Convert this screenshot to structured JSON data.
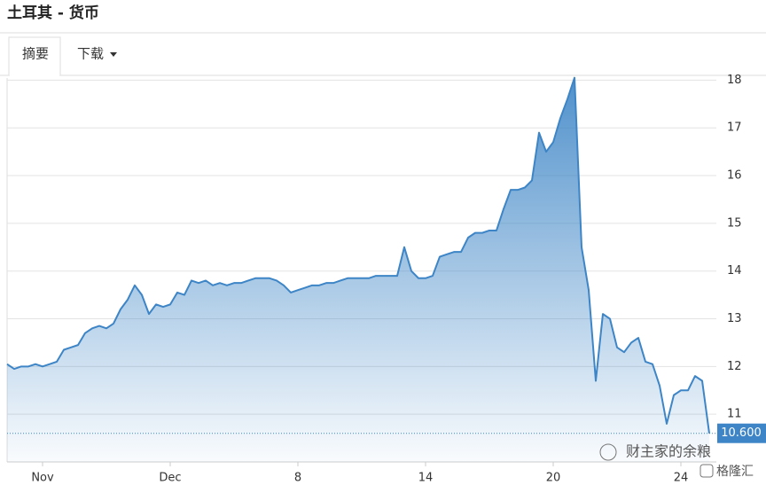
{
  "header": {
    "title": "土耳其 - 货币",
    "tabs": [
      "摘要",
      "下载"
    ]
  },
  "watermark": [
    "财主家的余粮",
    "格隆汇"
  ],
  "chart_data": {
    "type": "area",
    "categories": [
      null,
      null,
      null,
      null,
      null,
      "Nov",
      null,
      null,
      null,
      null,
      null,
      null,
      null,
      null,
      null,
      null,
      null,
      null,
      null,
      null,
      null,
      null,
      null,
      "Dec",
      null,
      null,
      null,
      null,
      null,
      null,
      null,
      null,
      null,
      null,
      null,
      null,
      null,
      null,
      null,
      null,
      null,
      "8",
      null,
      null,
      null,
      null,
      null,
      null,
      null,
      null,
      null,
      null,
      null,
      null,
      null,
      null,
      null,
      null,
      null,
      "14",
      null,
      null,
      null,
      null,
      null,
      null,
      null,
      null,
      null,
      null,
      null,
      null,
      null,
      null,
      null,
      null,
      null,
      "20",
      null,
      null,
      null,
      null,
      null,
      null,
      null,
      null,
      null,
      null,
      null,
      null,
      null,
      null,
      null,
      null,
      null,
      "24",
      null,
      null,
      null,
      null
    ],
    "values": [
      12.05,
      11.95,
      12.0,
      12.0,
      12.05,
      12.0,
      12.05,
      12.1,
      12.35,
      12.4,
      12.45,
      12.7,
      12.8,
      12.85,
      12.8,
      12.9,
      13.2,
      13.4,
      13.7,
      13.5,
      13.1,
      13.3,
      13.25,
      13.3,
      13.55,
      13.5,
      13.8,
      13.75,
      13.8,
      13.7,
      13.75,
      13.7,
      13.75,
      13.75,
      13.8,
      13.85,
      13.85,
      13.85,
      13.8,
      13.7,
      13.55,
      13.6,
      13.65,
      13.7,
      13.7,
      13.75,
      13.75,
      13.8,
      13.85,
      13.85,
      13.85,
      13.85,
      13.9,
      13.9,
      13.9,
      13.9,
      14.5,
      14.0,
      13.85,
      13.85,
      13.9,
      14.3,
      14.35,
      14.4,
      14.4,
      14.7,
      14.8,
      14.8,
      14.85,
      14.85,
      15.3,
      15.7,
      15.7,
      15.75,
      15.9,
      16.9,
      16.5,
      16.7,
      17.2,
      17.6,
      18.05,
      14.5,
      13.6,
      11.7,
      13.1,
      13.0,
      12.4,
      12.3,
      12.5,
      12.6,
      12.1,
      12.05,
      11.6,
      10.8,
      11.4,
      11.5,
      11.5,
      11.8,
      11.7,
      10.6
    ],
    "color": "#3d85c6",
    "ylim": [
      10,
      18.1
    ],
    "yticks": [
      11,
      12,
      13,
      14,
      15,
      16,
      17,
      18
    ],
    "grid": true,
    "last_price": {
      "value": 10.6,
      "label": "10.600"
    }
  }
}
